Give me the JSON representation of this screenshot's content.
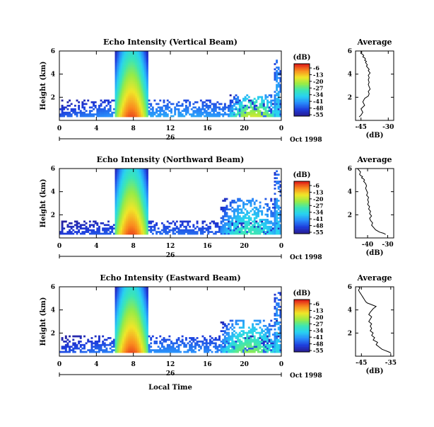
{
  "chart_data": [
    {
      "type": "heatmap",
      "title": "Echo Intensity (Vertical Beam)",
      "ylabel": "Height (km)",
      "x_ticks": [
        "0",
        "4",
        "8",
        "12",
        "16",
        "20",
        "0"
      ],
      "y_ticks": [
        "2",
        "4",
        "6"
      ],
      "date_ticks": [
        "26"
      ],
      "date_suffix": "Oct 1998",
      "xlim": [
        0,
        24
      ],
      "ylim": [
        0,
        6
      ],
      "colorbar": {
        "unit": "(dB)",
        "ticks": [
          "-6",
          "-13",
          "-20",
          "-27",
          "-34",
          "-41",
          "-48",
          "-55"
        ],
        "range": [
          -55,
          -6
        ]
      },
      "features": [
        {
          "x": [
            6.0,
            9.6
          ],
          "y": [
            0.3,
            6.0
          ],
          "peak_db": -8
        },
        {
          "x": [
            0.0,
            24.0
          ],
          "y": [
            0.3,
            1.8
          ],
          "peak_db": -40
        },
        {
          "x": [
            18.5,
            23.6
          ],
          "y": [
            0.3,
            2.3
          ],
          "peak_db": -20
        },
        {
          "x": [
            23.2,
            24.0
          ],
          "y": [
            0.3,
            5.8
          ],
          "peak_db": -35
        }
      ]
    },
    {
      "type": "line",
      "title": "Average",
      "xlabel": "(dB)",
      "x_ticks": [
        "-45",
        "-30"
      ],
      "y_ticks": [
        "2",
        "4",
        "6"
      ],
      "xlim": [
        -48,
        -27
      ],
      "ylim": [
        0,
        6
      ],
      "x": [
        -46,
        -45,
        -44,
        -45,
        -43,
        -44,
        -43,
        -42,
        -41,
        -40.5,
        -41,
        -40,
        -40.5,
        -41,
        -40.5,
        -41,
        -40.5,
        -41,
        -40,
        -41,
        -40.5,
        -41,
        -41.5,
        -42,
        -41.5,
        -42,
        -42.5,
        -42,
        -43,
        -42.5,
        -43,
        -44,
        -43.5,
        -44,
        -45,
        -44.5,
        -45
      ],
      "y": [
        0.3,
        0.45,
        0.7,
        1.0,
        1.3,
        1.6,
        1.9,
        2.0,
        2.1,
        2.3,
        2.5,
        2.7,
        2.9,
        3.1,
        3.3,
        3.5,
        3.7,
        3.9,
        4.1,
        4.3,
        4.4,
        4.5,
        4.6,
        4.7,
        4.8,
        4.9,
        5.0,
        5.1,
        5.2,
        5.3,
        5.4,
        5.5,
        5.6,
        5.7,
        5.8,
        5.9,
        6.0
      ]
    },
    {
      "type": "heatmap",
      "title": "Echo Intensity (Northward Beam)",
      "ylabel": "Height (km)",
      "x_ticks": [
        "0",
        "4",
        "8",
        "12",
        "16",
        "20",
        "0"
      ],
      "y_ticks": [
        "2",
        "4",
        "6"
      ],
      "date_ticks": [
        "26"
      ],
      "date_suffix": "Oct 1998",
      "xlim": [
        0,
        24
      ],
      "ylim": [
        0,
        6
      ],
      "colorbar": {
        "unit": "(dB)",
        "ticks": [
          "-6",
          "-13",
          "-20",
          "-27",
          "-34",
          "-41",
          "-48",
          "-55"
        ],
        "range": [
          -55,
          -6
        ]
      },
      "features": [
        {
          "x": [
            6.0,
            9.6
          ],
          "y": [
            0.3,
            6.0
          ],
          "peak_db": -8
        },
        {
          "x": [
            0.0,
            24.0
          ],
          "y": [
            0.3,
            1.5
          ],
          "peak_db": -45
        },
        {
          "x": [
            17.5,
            23.6
          ],
          "y": [
            0.3,
            3.5
          ],
          "peak_db": -30
        },
        {
          "x": [
            23.2,
            24.0
          ],
          "y": [
            0.3,
            6.0
          ],
          "peak_db": -35
        }
      ]
    },
    {
      "type": "line",
      "title": "Average",
      "xlabel": "(dB)",
      "x_ticks": [
        "-40",
        "-30"
      ],
      "y_ticks": [
        "2",
        "4",
        "6"
      ],
      "xlim": [
        -46,
        -27
      ],
      "ylim": [
        0,
        6
      ],
      "x": [
        -31,
        -32,
        -34,
        -36,
        -37,
        -38,
        -37.5,
        -38.5,
        -39,
        -38,
        -39,
        -38.5,
        -39.5,
        -39,
        -40,
        -39.5,
        -40,
        -39.5,
        -40.5,
        -40,
        -40.5,
        -41,
        -40.5,
        -41,
        -42,
        -41.5,
        -42,
        -43,
        -42.5,
        -43.5,
        -44,
        -43.5,
        -44,
        -45
      ],
      "y": [
        0.3,
        0.4,
        0.5,
        0.7,
        0.9,
        1.1,
        1.3,
        1.5,
        1.7,
        1.9,
        2.1,
        2.3,
        2.5,
        2.7,
        2.9,
        3.1,
        3.3,
        3.5,
        3.7,
        3.9,
        4.1,
        4.3,
        4.5,
        4.7,
        4.9,
        5.0,
        5.1,
        5.2,
        5.3,
        5.4,
        5.5,
        5.7,
        5.8,
        6.0
      ]
    },
    {
      "type": "heatmap",
      "title": "Echo Intensity (Eastward Beam)",
      "ylabel": "Height (km)",
      "xlabel": "Local Time",
      "x_ticks": [
        "0",
        "4",
        "8",
        "12",
        "16",
        "20",
        "0"
      ],
      "y_ticks": [
        "2",
        "4",
        "6"
      ],
      "date_ticks": [
        "26"
      ],
      "date_suffix": "Oct 1998",
      "xlim": [
        0,
        24
      ],
      "ylim": [
        0,
        6
      ],
      "colorbar": {
        "unit": "(dB)",
        "ticks": [
          "-6",
          "-13",
          "-20",
          "-27",
          "-34",
          "-41",
          "-48",
          "-55"
        ],
        "range": [
          -55,
          -6
        ]
      },
      "features": [
        {
          "x": [
            6.0,
            9.6
          ],
          "y": [
            0.3,
            6.0
          ],
          "peak_db": -8
        },
        {
          "x": [
            0.0,
            24.0
          ],
          "y": [
            0.3,
            1.8
          ],
          "peak_db": -42
        },
        {
          "x": [
            17.5,
            23.6
          ],
          "y": [
            0.3,
            3.2
          ],
          "peak_db": -25
        },
        {
          "x": [
            23.2,
            24.0
          ],
          "y": [
            0.3,
            5.5
          ],
          "peak_db": -34
        }
      ]
    },
    {
      "type": "line",
      "title": "Average",
      "xlabel": "(dB)",
      "x_ticks": [
        "-45",
        "-35"
      ],
      "y_ticks": [
        "2",
        "4",
        "6"
      ],
      "xlim": [
        -47,
        -34
      ],
      "ylim": [
        0,
        6
      ],
      "x": [
        -35,
        -36,
        -37,
        -38,
        -39,
        -40,
        -39.5,
        -41,
        -40.5,
        -41.5,
        -41,
        -42,
        -41.5,
        -42,
        -41.5,
        -42.5,
        -42,
        -41.5,
        -42.5,
        -42,
        -41,
        -40,
        -41,
        -42,
        -43,
        -43.5,
        -44,
        -44.5,
        -45,
        -45.5,
        -46,
        -45.5,
        -46
      ],
      "y": [
        0.3,
        0.4,
        0.5,
        0.6,
        0.8,
        1.0,
        1.2,
        1.4,
        1.6,
        1.8,
        2.0,
        2.2,
        2.4,
        2.6,
        2.8,
        3.0,
        3.2,
        3.4,
        3.6,
        3.8,
        4.1,
        4.3,
        4.4,
        4.5,
        4.6,
        4.7,
        4.9,
        5.1,
        5.3,
        5.5,
        5.7,
        5.9,
        6.0
      ]
    }
  ]
}
